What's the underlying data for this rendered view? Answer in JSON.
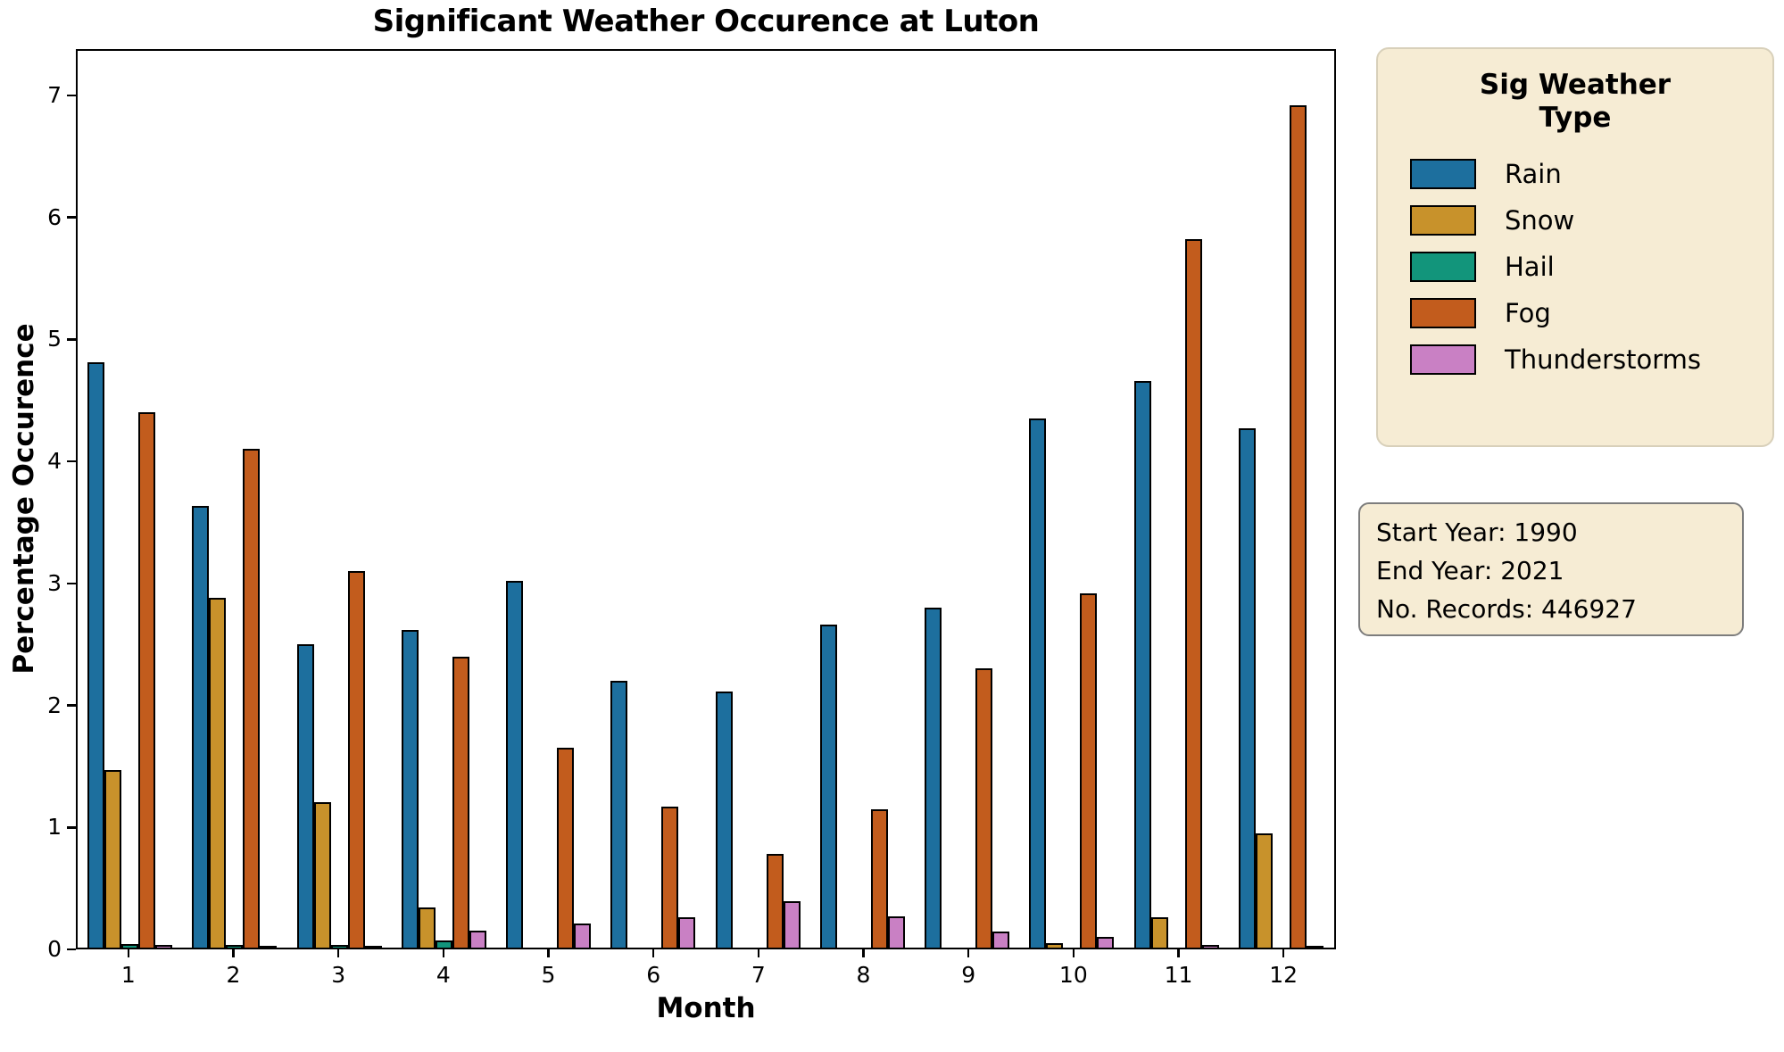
{
  "title": "Significant Weather Occurence at Luton",
  "xlabel": "Month",
  "ylabel": "Percentage Occurence",
  "legend": {
    "title": "Sig Weather Type",
    "title_lines": [
      "Sig Weather",
      "Type"
    ],
    "items": [
      {
        "label": "Rain",
        "color": "#1D6F9E"
      },
      {
        "label": "Snow",
        "color": "#C8922B"
      },
      {
        "label": "Hail",
        "color": "#12957B"
      },
      {
        "label": "Fog",
        "color": "#C25C1D"
      },
      {
        "label": "Thunderstorms",
        "color": "#C980C4"
      }
    ]
  },
  "info_box": {
    "lines": [
      "Start Year: 1990",
      "End Year: 2021",
      "No. Records: 446927"
    ]
  },
  "chart_data": {
    "type": "bar",
    "title": "Significant Weather Occurence at Luton",
    "xlabel": "Month",
    "ylabel": "Percentage Occurence",
    "categories": [
      "1",
      "2",
      "3",
      "4",
      "5",
      "6",
      "7",
      "8",
      "9",
      "10",
      "11",
      "12"
    ],
    "series": [
      {
        "name": "Rain",
        "color": "#1D6F9E",
        "values": [
          4.82,
          3.64,
          2.5,
          2.62,
          3.02,
          2.2,
          2.11,
          2.66,
          2.8,
          4.36,
          4.67,
          4.28
        ]
      },
      {
        "name": "Snow",
        "color": "#C8922B",
        "values": [
          1.46,
          2.88,
          1.2,
          0.33,
          0,
          0,
          0,
          0,
          0,
          0.04,
          0.25,
          0.94
        ]
      },
      {
        "name": "Hail",
        "color": "#12957B",
        "values": [
          0.03,
          0.02,
          0.02,
          0.06,
          0,
          0,
          0,
          0,
          0,
          0,
          0,
          0
        ]
      },
      {
        "name": "Fog",
        "color": "#C25C1D",
        "values": [
          4.41,
          4.11,
          3.1,
          2.4,
          1.65,
          1.16,
          0.77,
          1.14,
          2.3,
          2.92,
          5.84,
          6.94
        ]
      },
      {
        "name": "Thunderstorms",
        "color": "#C980C4",
        "values": [
          0.02,
          0.01,
          0.01,
          0.14,
          0.2,
          0.25,
          0.38,
          0.26,
          0.13,
          0.09,
          0.02,
          0.01
        ]
      }
    ],
    "ylim": [
      0,
      7.38
    ],
    "yticks": [
      0,
      1,
      2,
      3,
      4,
      5,
      6,
      7
    ],
    "grid": false,
    "legend_position": "outside-upper-right",
    "bar_edge_color": "#000000",
    "bar_edge_width": 2
  }
}
